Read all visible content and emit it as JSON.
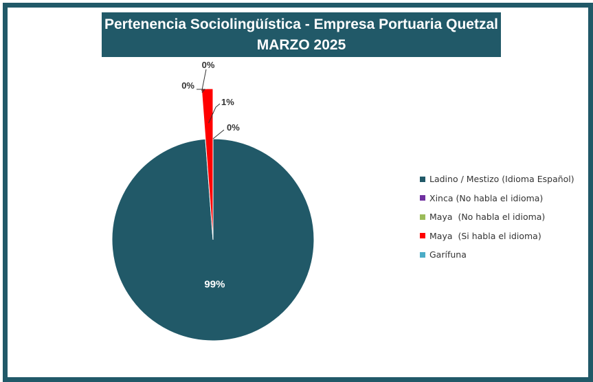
{
  "chart_data": {
    "type": "pie",
    "title": "Pertenencia Sociolingüística - Empresa Portuaria Quetzal",
    "subtitle": "MARZO 2025",
    "legend_position": "right",
    "slices": [
      {
        "label": "Ladino / Mestizo (Idioma Español)",
        "value": 98.8,
        "data_label": "99%",
        "color": "#215968"
      },
      {
        "label": "Xinca (No habla el idioma)",
        "value": 0.0,
        "data_label": "0%",
        "color": "#7030a0"
      },
      {
        "label": "Maya  (No habla el idioma)",
        "value": 0.0,
        "data_label": "0%",
        "color": "#9bbb59"
      },
      {
        "label": "Maya  (Si habla el idioma)",
        "value": 1.2,
        "data_label": "1%",
        "color": "#ff0000"
      },
      {
        "label": "Garífuna",
        "value": 0.0,
        "data_label": "0%",
        "color": "#4bacc6"
      }
    ]
  }
}
